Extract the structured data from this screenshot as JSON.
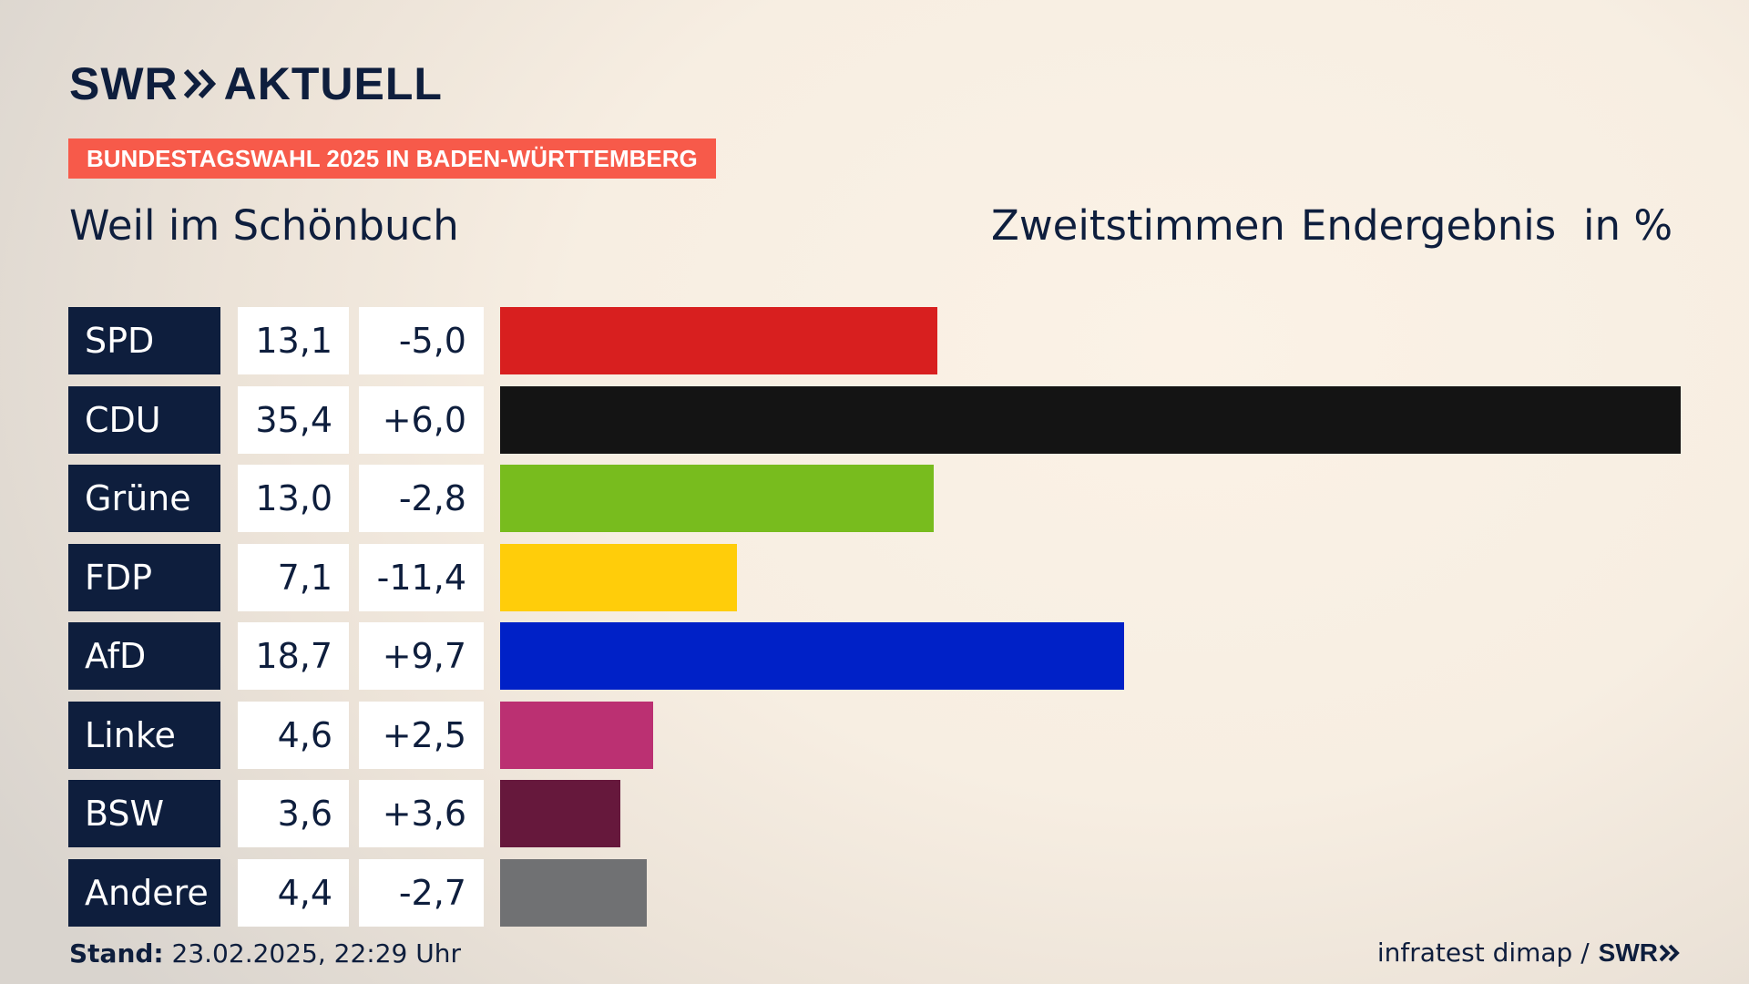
{
  "brand": {
    "logo_left": "SWR",
    "logo_right": "AKTUELL",
    "footer_logo": "SWR"
  },
  "banner": "BUNDESTAGSWAHL 2025 IN BADEN-WÜRTTEMBERG",
  "place": "Weil im Schönbuch",
  "headers": {
    "vote": "Zweitstimmen",
    "result": "Endergebnis",
    "unit": "in %"
  },
  "footer": {
    "stand_label": "Stand:",
    "stand_value": "23.02.2025, 22:29 Uhr",
    "source": "infratest dimap /"
  },
  "chart_data": {
    "type": "bar",
    "orientation": "horizontal",
    "title": "Weil im Schönbuch",
    "categories": [
      "SPD",
      "CDU",
      "Grüne",
      "FDP",
      "AfD",
      "Linke",
      "BSW",
      "Andere"
    ],
    "values": [
      13.1,
      35.4,
      13.0,
      7.1,
      18.7,
      4.6,
      3.6,
      4.4
    ],
    "values_text": [
      "13,1",
      "35,4",
      "13,0",
      "7,1",
      "18,7",
      "4,6",
      "3,6",
      "4,4"
    ],
    "changes": [
      -5.0,
      6.0,
      -2.8,
      -11.4,
      9.7,
      2.5,
      3.6,
      -2.7
    ],
    "changes_text": [
      "-5,0",
      "+6,0",
      "-2,8",
      "-11,4",
      "+9,7",
      "+2,5",
      "+3,6",
      "-2,7"
    ],
    "colors": [
      "#d81f1f",
      "#141414",
      "#78bc1e",
      "#ffcd0a",
      "#0021c7",
      "#bb3072",
      "#66183c",
      "#707173"
    ],
    "xlim": [
      0,
      35.4
    ],
    "grid": false,
    "legend": "none"
  }
}
